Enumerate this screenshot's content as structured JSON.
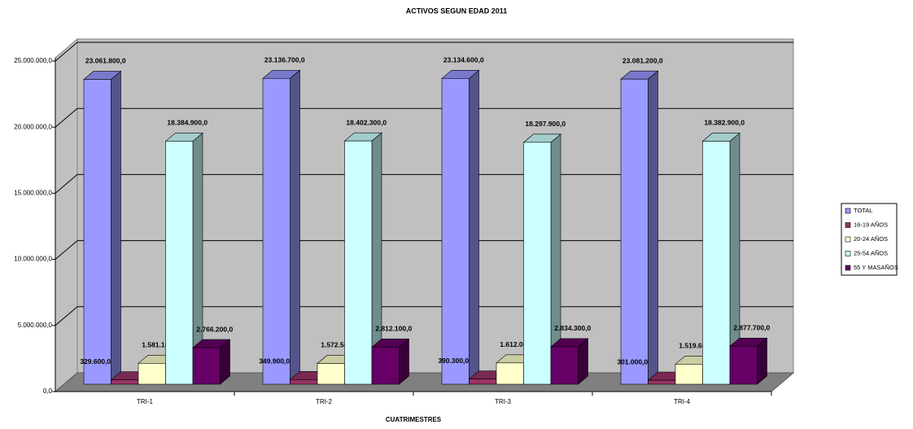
{
  "chart_data": {
    "type": "bar3d",
    "title": "ACTIVOS SEGUN EDAD 2011",
    "x_label": "CUATRIMESTRES",
    "categories": [
      "TRI-1",
      "TRI-2",
      "TRI-3",
      "TRI-4"
    ],
    "series": [
      {
        "name": "TOTAL",
        "color": "#9999ff",
        "values": [
          23061800,
          23136700,
          23134600,
          23081200
        ],
        "value_labels": [
          "23.061.800,0",
          "23.136.700,0",
          "23.134.600,0",
          "23.081.200,0"
        ]
      },
      {
        "name": "16-19 AÑOS",
        "color": "#993366",
        "values": [
          329600,
          349900,
          390300,
          301000
        ],
        "value_labels": [
          "329.600,0",
          "349.900,0",
          "390.300,0",
          "301.000,0"
        ]
      },
      {
        "name": "20-24 AÑOS",
        "color": "#ffffcc",
        "values": [
          1581100,
          1572500,
          1612000,
          1519600
        ],
        "value_labels": [
          "1.581.100,0",
          "1.572.500,0",
          "1.612.000,0",
          "1.519.600,0"
        ]
      },
      {
        "name": "25-54 AÑOS",
        "color": "#ccffff",
        "values": [
          18384900,
          18402300,
          18297900,
          18382900
        ],
        "value_labels": [
          "18.384.900,0",
          "18.402.300,0",
          "18.297.900,0",
          "18.382.900,0"
        ]
      },
      {
        "name": "55 Y MASAÑOS",
        "color": "#660066",
        "values": [
          2766200,
          2812100,
          2834300,
          2877700
        ],
        "value_labels": [
          "2.766.200,0",
          "2.812.100,0",
          "2.834.300,0",
          "2.877.700,0"
        ]
      }
    ],
    "ylim": [
      0,
      25000000
    ],
    "yticks": [
      {
        "value": 0,
        "label": "0,0"
      },
      {
        "value": 5000000,
        "label": "5.000.000,0"
      },
      {
        "value": 10000000,
        "label": "10.000.000,0"
      },
      {
        "value": 15000000,
        "label": "15.000.000,0"
      },
      {
        "value": 20000000,
        "label": "20.000.000,0"
      },
      {
        "value": 25000000,
        "label": "25.000.000,0"
      }
    ],
    "grid": true,
    "legend": "right"
  }
}
